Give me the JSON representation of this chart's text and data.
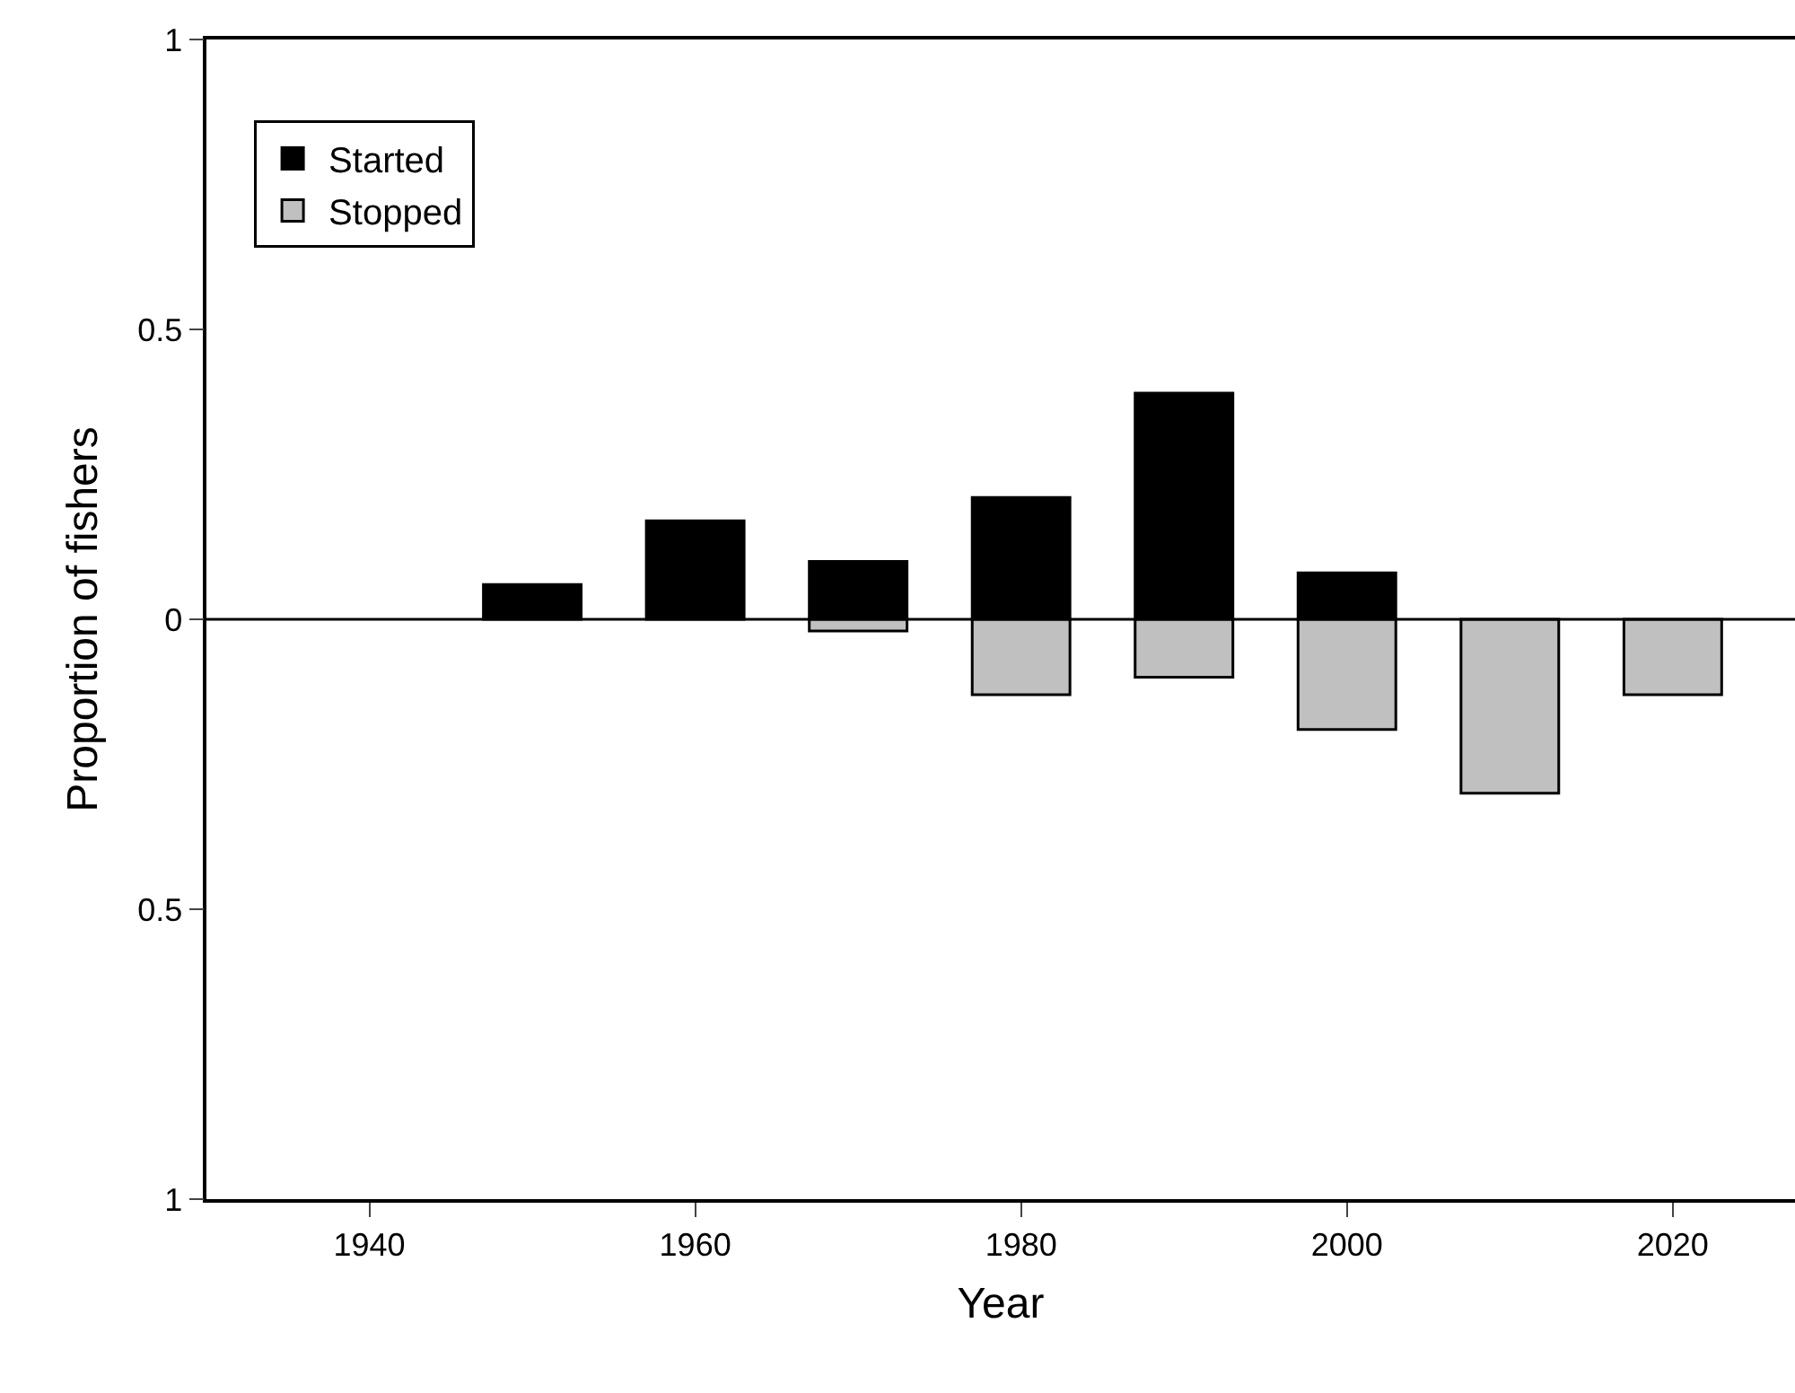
{
  "chart_data": {
    "type": "bar",
    "stacked": true,
    "xlabel": "Year",
    "ylabel": "Proportion of fishers",
    "x": [
      1950,
      1960,
      1970,
      1980,
      1990,
      2000,
      2010,
      2020
    ],
    "series": [
      {
        "name": "Started",
        "color": "#000000",
        "values": [
          0.06,
          0.17,
          0.1,
          0.21,
          0.39,
          0.08,
          null,
          null
        ]
      },
      {
        "name": "Stopped",
        "color": "#c0c0c0",
        "values": [
          null,
          null,
          -0.02,
          -0.13,
          -0.1,
          -0.19,
          -0.3,
          -0.13
        ]
      }
    ],
    "xlim": [
      1930,
      2027.5
    ],
    "xticks": [
      1940,
      1960,
      1980,
      2000,
      2020
    ],
    "ylim": [
      -1,
      1
    ],
    "yticks": [
      {
        "value": 1,
        "label": "1"
      },
      {
        "value": 0.5,
        "label": "0.5"
      },
      {
        "value": 0,
        "label": "0"
      },
      {
        "value": -0.5,
        "label": "0.5"
      },
      {
        "value": -1,
        "label": "1"
      }
    ],
    "ref_lines": [
      {
        "axis": "y",
        "value": 0,
        "color": "#000000"
      }
    ],
    "legend": "top left"
  }
}
